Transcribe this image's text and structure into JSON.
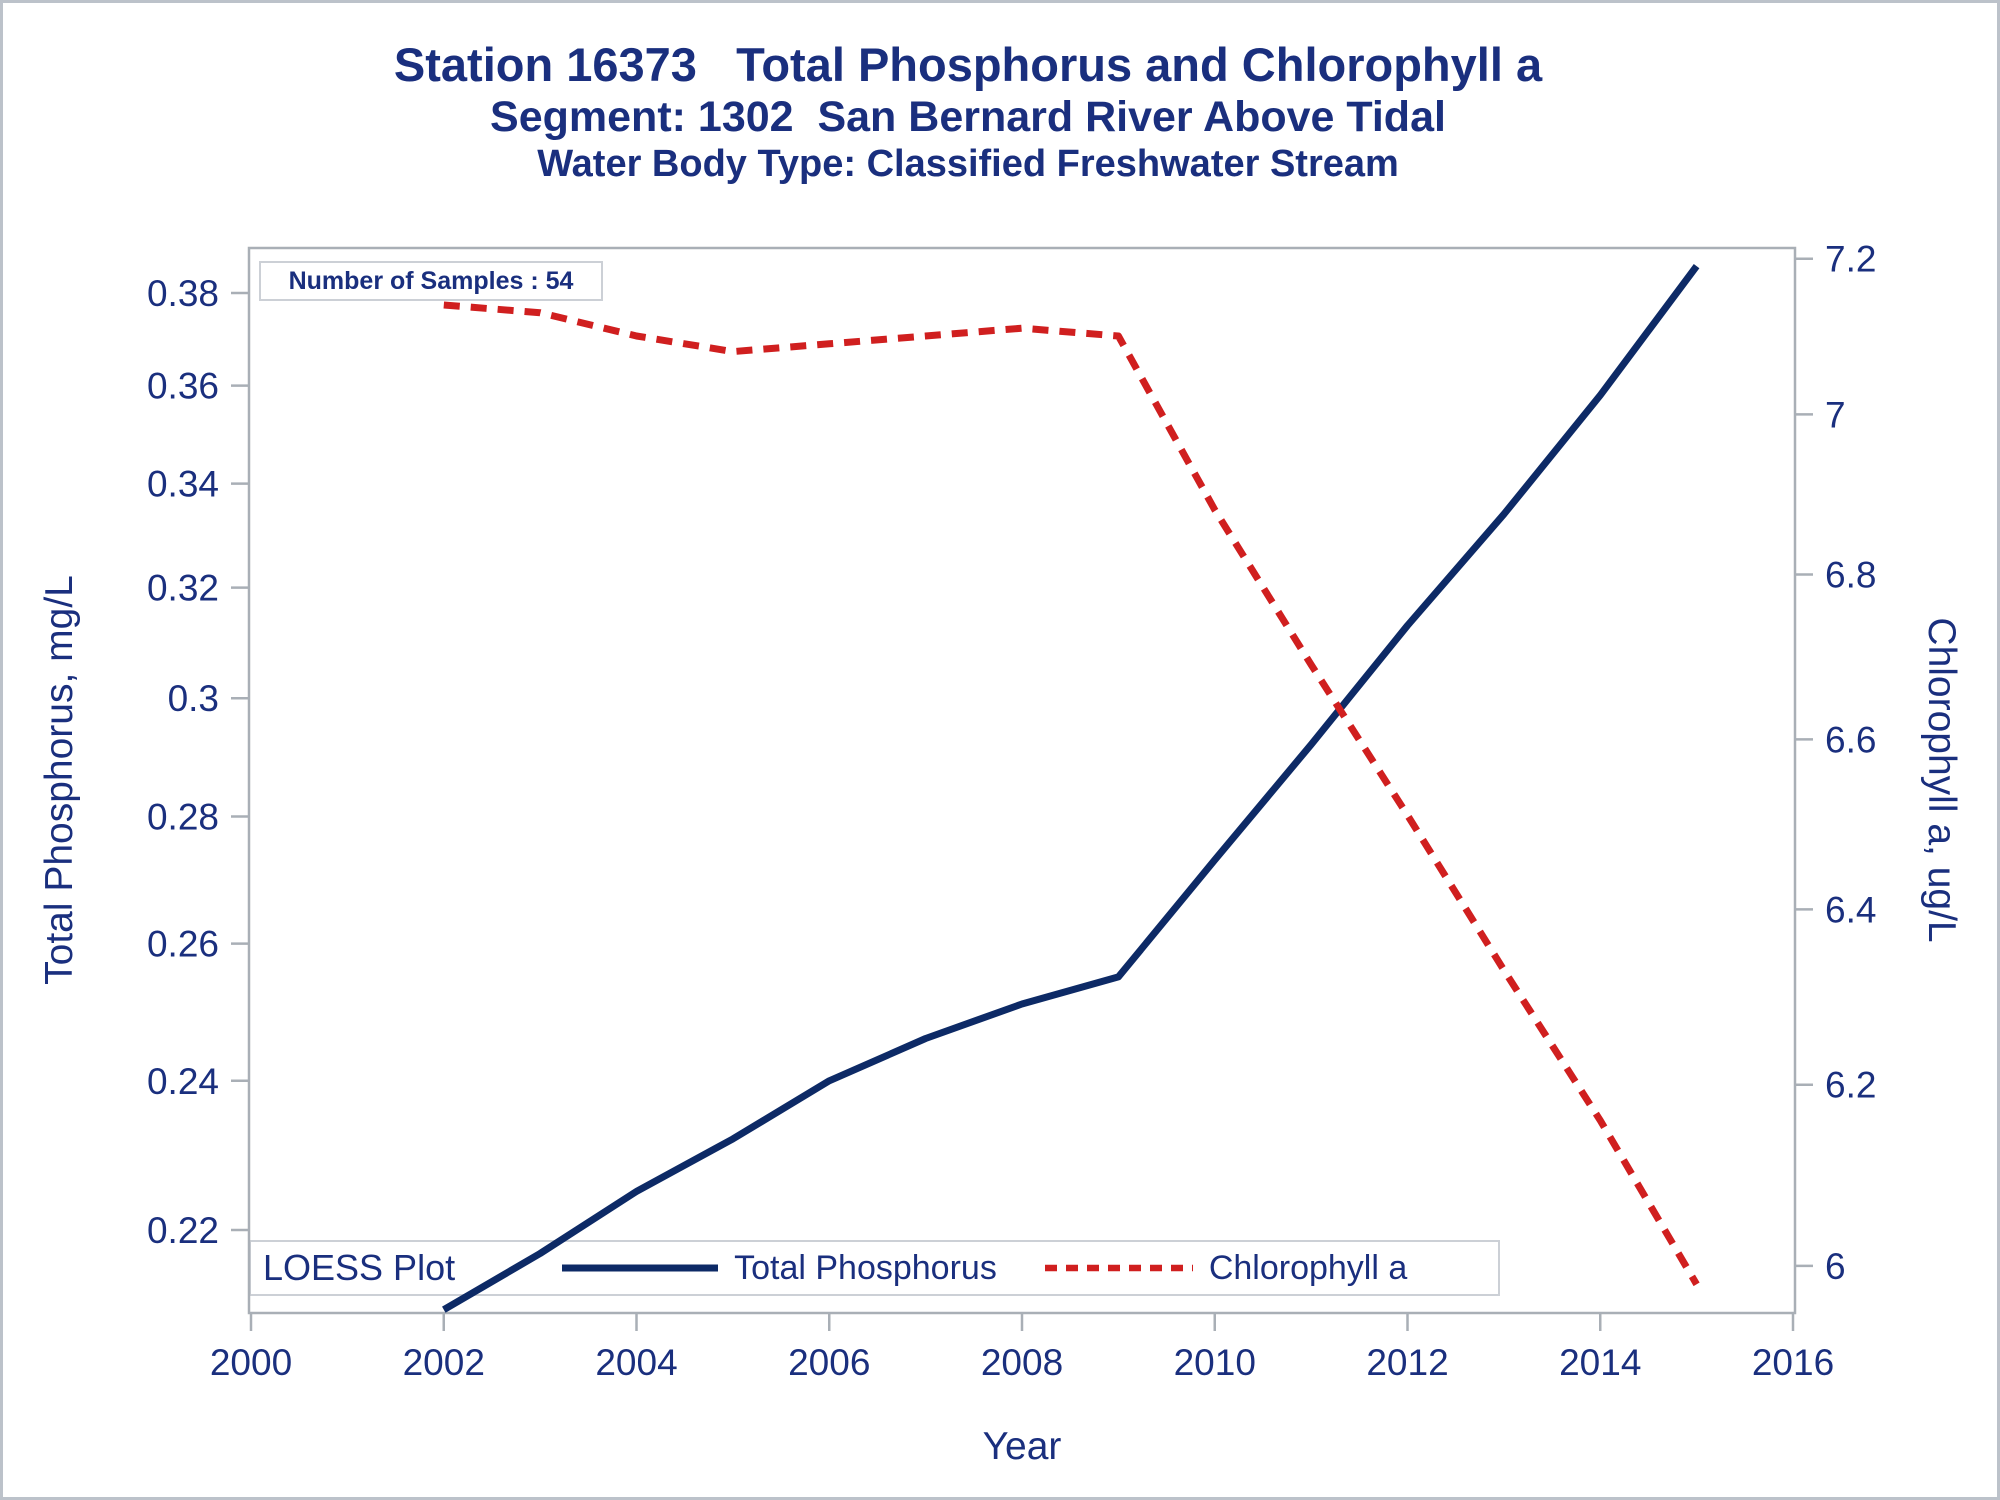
{
  "chart_data": {
    "type": "line",
    "title": "Station 16373   Total Phosphorus and Chlorophyll a",
    "subtitle": "Segment: 1302  San Bernard River Above Tidal",
    "subtitle2": "Water Body Type: Classified Freshwater Stream",
    "annotation": "Number of Samples : 54",
    "legend_heading": "LOESS Plot",
    "legend_position": "bottom",
    "grid": false,
    "x": [
      2002,
      2003,
      2004,
      2005,
      2006,
      2007,
      2008,
      2009,
      2010,
      2011,
      2012,
      2013,
      2014,
      2015
    ],
    "series": [
      {
        "name": "Total Phosphorus",
        "axis": "left",
        "color": "#0d2a66",
        "line": "solid",
        "values": [
          0.21,
          0.217,
          0.225,
          0.232,
          0.24,
          0.246,
          0.251,
          0.255,
          0.273,
          0.292,
          0.313,
          0.334,
          0.358,
          0.386
        ]
      },
      {
        "name": "Chlorophyll a",
        "axis": "right",
        "color": "#d01f1f",
        "line": "dashed",
        "values": [
          7.14,
          7.13,
          7.1,
          7.08,
          7.09,
          7.1,
          7.11,
          7.1,
          6.88,
          6.69,
          6.51,
          6.33,
          6.16,
          5.98
        ]
      }
    ],
    "x_axis": {
      "label": "Year",
      "range": [
        2000,
        2016
      ],
      "ticks": [
        2000,
        2002,
        2004,
        2006,
        2008,
        2010,
        2012,
        2014,
        2016
      ]
    },
    "y_left": {
      "label": "Total Phosphorus, mg/L",
      "scale": "log",
      "range": [
        0.2096,
        0.3901
      ],
      "ticks": [
        "0.38",
        "0.36",
        "0.34",
        "0.32",
        "0.3",
        "0.28",
        "0.26",
        "0.24",
        "0.22"
      ]
    },
    "y_right": {
      "label": "Chlorophyll a, ug/L",
      "scale": "log",
      "range": [
        5.949,
        7.214
      ],
      "ticks": [
        "7.2",
        "7",
        "6.8",
        "6.6",
        "6.4",
        "6.2",
        "6"
      ]
    },
    "axis_color": "#a9afb6",
    "text_color": "#1a2f7e",
    "box_border_color": "#ccd0d6"
  }
}
